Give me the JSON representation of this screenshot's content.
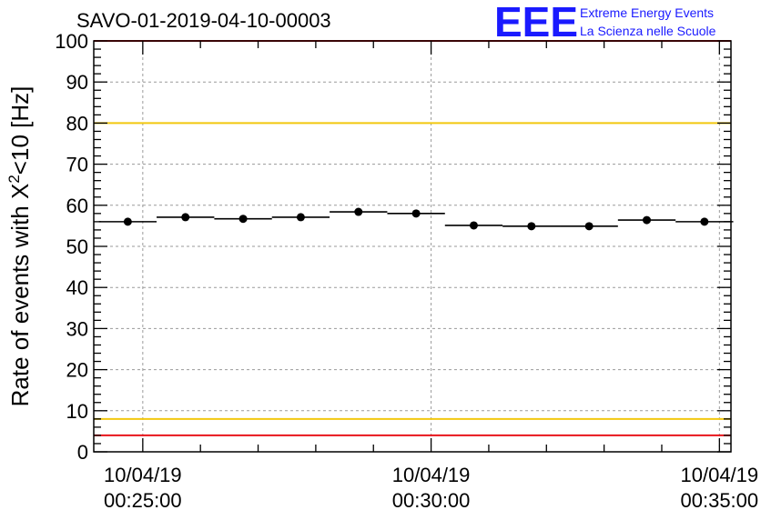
{
  "chart_data": {
    "type": "scatter",
    "title": "SAVO-01-2019-04-10-00003",
    "ylabel": {
      "prefix": "Rate of events with X",
      "superscript": "2",
      "suffix": "<10 [Hz]"
    },
    "xlabel": "",
    "ylim": [
      0,
      100
    ],
    "y_ticks": [
      "0",
      "10",
      "20",
      "30",
      "40",
      "50",
      "60",
      "70",
      "80",
      "90",
      "100"
    ],
    "x_range_minutes": [
      -0.85,
      10.2
    ],
    "x_ticks": [
      {
        "minute": 0,
        "date": "10/04/19",
        "time": "00:25:00"
      },
      {
        "minute": 5,
        "date": "10/04/19",
        "time": "00:30:00"
      },
      {
        "minute": 10,
        "date": "10/04/19",
        "time": "00:35:00"
      }
    ],
    "grid": true,
    "bin_width_minutes": 1,
    "series": [
      {
        "name": "rate",
        "x_minutes": [
          -0.26,
          0.74,
          1.74,
          2.74,
          3.74,
          4.74,
          5.74,
          6.74,
          7.74,
          8.74,
          9.74
        ],
        "values": [
          56.0,
          57.1,
          56.7,
          57.1,
          58.4,
          58.0,
          55.1,
          54.9,
          54.9,
          56.4,
          56.0
        ]
      }
    ],
    "threshold_lines": [
      {
        "name": "upper-red-limit",
        "value": 100,
        "color": "#e8141b"
      },
      {
        "name": "upper-yellow-limit",
        "value": 80,
        "color": "#f2c80f"
      },
      {
        "name": "lower-yellow-limit",
        "value": 8,
        "color": "#f2c80f"
      },
      {
        "name": "lower-red-limit",
        "value": 4,
        "color": "#e8141b"
      }
    ]
  },
  "logo": {
    "mark": "EEE",
    "line1": "Extreme Energy Events",
    "line2": "La Scienza nelle Scuole"
  },
  "colors": {
    "logo": "#1a1aff",
    "axis": "#000000",
    "grid": "#9a9a9a"
  }
}
